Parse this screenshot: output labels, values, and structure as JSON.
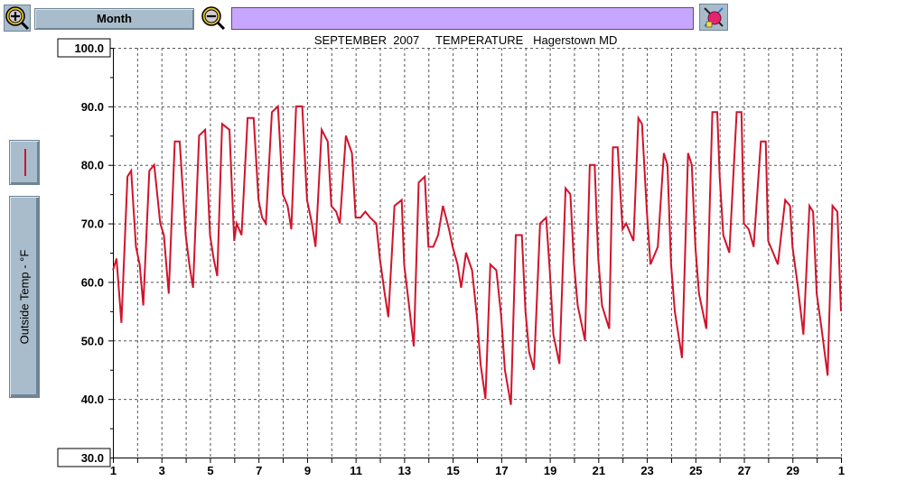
{
  "toolbar": {
    "range_label": "Month",
    "title": "SEPTEMBER  2007     TEMPERATURE   Hagerstown MD"
  },
  "colors": {
    "series": "#d0142c",
    "button_face": "#a9bccb",
    "title_bg": "#c7a6ff"
  },
  "chart_data": {
    "type": "line",
    "title": "SEPTEMBER  2007     TEMPERATURE   Hagerstown MD",
    "ylabel": "Outside Temp - °F",
    "xlabel": "",
    "ylim": [
      30,
      100
    ],
    "xlim": [
      1,
      31
    ],
    "grid": true,
    "y_ticks": [
      "100.0",
      "90.0",
      "80.0",
      "70.0",
      "60.0",
      "50.0",
      "40.0",
      "30.0"
    ],
    "x_ticks": [
      "1",
      "3",
      "5",
      "7",
      "9",
      "11",
      "13",
      "15",
      "17",
      "19",
      "21",
      "23",
      "25",
      "27",
      "29",
      "1"
    ],
    "series": [
      {
        "x": [
          1.0,
          1.15,
          1.35,
          1.6,
          1.75,
          1.95,
          2.1,
          2.25,
          2.5,
          2.7,
          2.95,
          3.1,
          3.3,
          3.55,
          3.75,
          4.0,
          4.15,
          4.3,
          4.55,
          4.8,
          5.0,
          5.15,
          5.3,
          5.5,
          5.8,
          6.0,
          6.1,
          6.3,
          6.55,
          6.8,
          7.0,
          7.15,
          7.3,
          7.55,
          7.8,
          8.0,
          8.2,
          8.35,
          8.55,
          8.8,
          9.0,
          9.2,
          9.35,
          9.6,
          9.85,
          10.0,
          10.2,
          10.35,
          10.6,
          10.85,
          11.0,
          11.2,
          11.4,
          11.6,
          11.85,
          12.0,
          12.2,
          12.35,
          12.6,
          12.9,
          13.0,
          13.2,
          13.4,
          13.6,
          13.85,
          14.0,
          14.2,
          14.4,
          14.6,
          14.85,
          15.0,
          15.2,
          15.35,
          15.55,
          15.8,
          16.0,
          16.15,
          16.35,
          16.55,
          16.8,
          17.0,
          17.15,
          17.4,
          17.6,
          17.85,
          18.0,
          18.15,
          18.35,
          18.6,
          18.85,
          19.0,
          19.15,
          19.4,
          19.65,
          19.85,
          20.0,
          20.15,
          20.45,
          20.65,
          20.85,
          21.0,
          21.15,
          21.45,
          21.6,
          21.8,
          22.0,
          22.15,
          22.45,
          22.65,
          22.8,
          23.0,
          23.15,
          23.45,
          23.7,
          23.85,
          24.0,
          24.15,
          24.45,
          24.7,
          24.85,
          25.0,
          25.15,
          25.45,
          25.7,
          25.9,
          26.0,
          26.15,
          26.4,
          26.7,
          26.9,
          27.0,
          27.2,
          27.4,
          27.7,
          27.9,
          28.0,
          28.2,
          28.4,
          28.7,
          28.9,
          29.0,
          29.2,
          29.45,
          29.7,
          29.85,
          30.0,
          30.2,
          30.45,
          30.65,
          30.85,
          31.0
        ],
        "values": [
          62,
          64,
          53,
          78,
          79,
          66,
          63,
          56,
          79,
          80,
          70,
          68,
          58,
          84,
          84,
          68,
          63,
          59,
          85,
          86,
          68,
          64,
          61,
          87,
          86,
          67,
          70,
          68,
          88,
          88,
          74,
          71,
          70,
          89,
          90,
          75,
          73,
          69,
          90,
          90,
          74,
          70,
          66,
          86,
          84,
          73,
          72,
          70,
          85,
          82,
          71,
          71,
          72,
          71,
          70,
          64,
          58,
          54,
          73,
          74,
          63,
          56,
          49,
          77,
          78,
          66,
          66,
          68,
          73,
          69,
          66,
          63,
          59,
          65,
          62,
          54,
          46,
          40,
          63,
          62,
          54,
          45,
          39,
          68,
          68,
          55,
          48,
          45,
          70,
          71,
          62,
          51,
          46,
          76,
          75,
          63,
          56,
          50,
          80,
          80,
          64,
          56,
          52,
          83,
          83,
          69,
          70,
          67,
          88,
          87,
          72,
          63,
          66,
          82,
          80,
          63,
          55,
          47,
          82,
          80,
          66,
          58,
          52,
          89,
          89,
          78,
          68,
          65,
          89,
          89,
          70,
          69,
          66,
          84,
          84,
          67,
          65,
          63,
          74,
          73,
          66,
          60,
          51,
          73,
          72,
          58,
          52,
          44,
          73,
          72,
          55
        ]
      }
    ]
  }
}
